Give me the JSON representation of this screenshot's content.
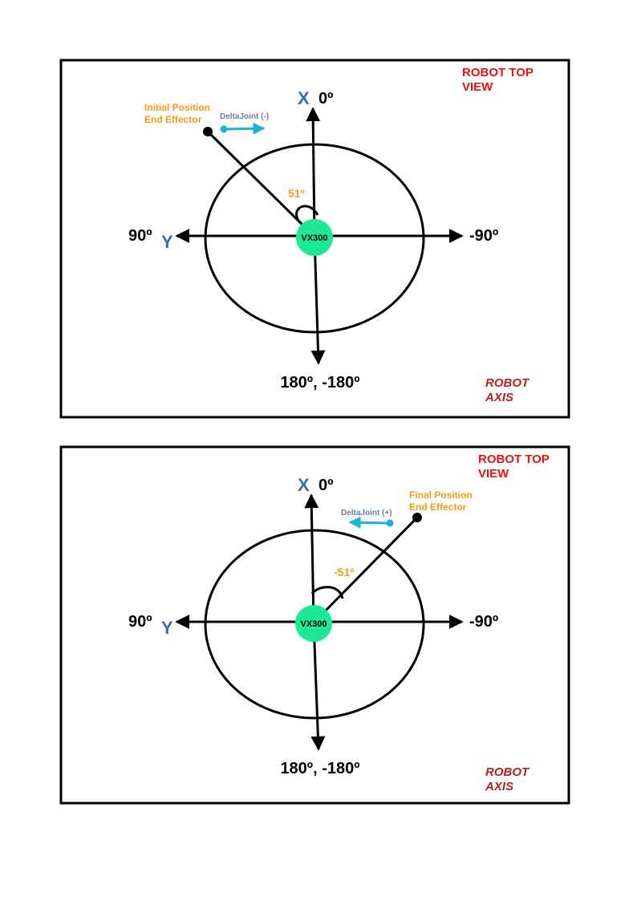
{
  "colors": {
    "title": "#ee1111",
    "axis_caption": "#b22222",
    "axis_letter": "#3d6bb3",
    "angle": "#f39c12",
    "delta": "#1ab4d6",
    "delta_text": "#6a7f99",
    "base": "#1de994"
  },
  "panels": [
    {
      "title_line1": "ROBOT TOP",
      "title_line2": "VIEW",
      "x_letter": "X",
      "x_label": "0º",
      "y_letter": "Y",
      "left_label": "90º",
      "right_label": "-90º",
      "bottom_label": "180º, -180º",
      "base_label": "VX300",
      "angle_label": "51º",
      "effector_line1": "Initial Position",
      "effector_line2": "End Effector",
      "delta_label": "DeltaJoint (-)",
      "caption_line1": "ROBOT",
      "caption_line2": "AXIS",
      "angle_deg": 51
    },
    {
      "title_line1": "ROBOT TOP",
      "title_line2": "VIEW",
      "x_letter": "X",
      "x_label": "0º",
      "y_letter": "Y",
      "left_label": "90º",
      "right_label": "-90º",
      "bottom_label": "180º, -180º",
      "base_label": "VX300",
      "angle_label": "-51º",
      "effector_line1": "Final Position",
      "effector_line2": "End Effector",
      "delta_label": "DeltaJoint (+)",
      "caption_line1": "ROBOT",
      "caption_line2": "AXIS",
      "angle_deg": -51
    }
  ]
}
